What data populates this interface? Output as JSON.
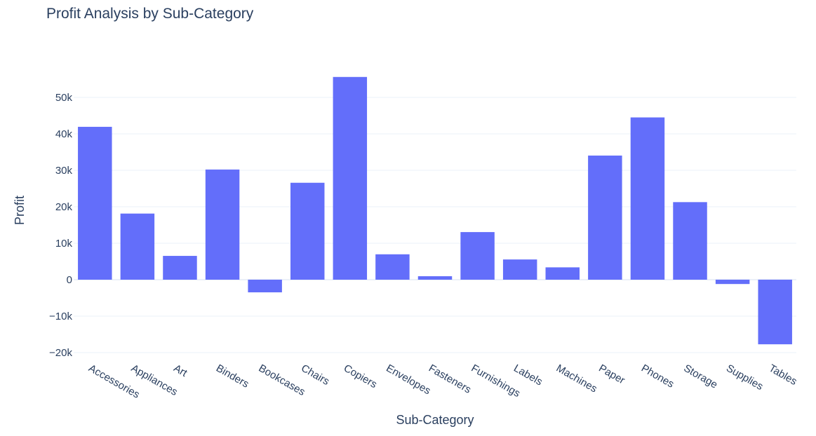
{
  "colors": {
    "bar": "#636efa",
    "text": "#2a3f5f",
    "grid": "#ebf0f8"
  },
  "chart_data": {
    "type": "bar",
    "title": "Profit Analysis by Sub-Category",
    "xlabel": "Sub-Category",
    "ylabel": "Profit",
    "categories": [
      "Accessories",
      "Appliances",
      "Art",
      "Binders",
      "Bookcases",
      "Chairs",
      "Copiers",
      "Envelopes",
      "Fasteners",
      "Furnishings",
      "Labels",
      "Machines",
      "Paper",
      "Phones",
      "Storage",
      "Supplies",
      "Tables"
    ],
    "values": [
      41937,
      18138,
      6528,
      30222,
      -3473,
      26590,
      55618,
      6964,
      950,
      13059,
      5546,
      3385,
      34054,
      44516,
      21279,
      -1189,
      -17725
    ],
    "yticks": [
      -20000,
      -10000,
      0,
      10000,
      20000,
      30000,
      40000,
      50000
    ],
    "ytick_labels": [
      "−20k",
      "−10k",
      "0",
      "10k",
      "20k",
      "30k",
      "40k",
      "50k"
    ],
    "ylim": [
      -21000,
      61000
    ],
    "grid": true,
    "legend": "none"
  }
}
